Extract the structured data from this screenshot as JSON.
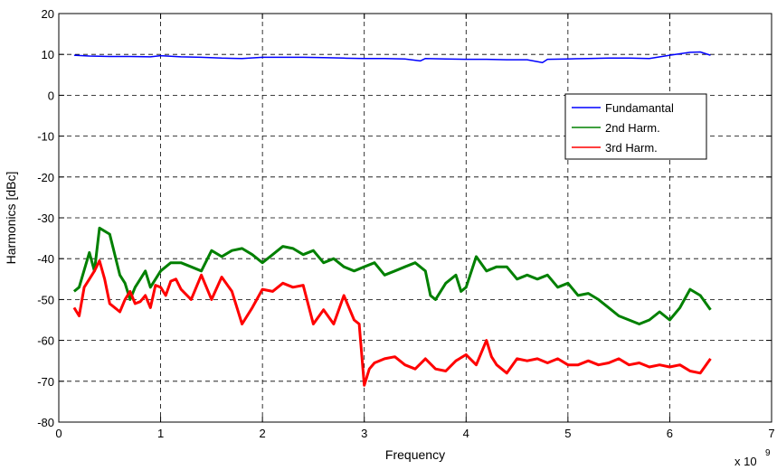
{
  "chart_data": {
    "type": "line",
    "xlabel": "Frequency",
    "ylabel": "Harmonics [dBc]",
    "x_scale_label": "x 10",
    "x_scale_exponent": "9",
    "xlim": [
      0,
      7
    ],
    "ylim": [
      -80,
      20
    ],
    "x_ticks": [
      "0",
      "1",
      "2",
      "3",
      "4",
      "5",
      "6",
      "7"
    ],
    "y_ticks": [
      "-80",
      "-70",
      "-60",
      "-50",
      "-40",
      "-30",
      "-20",
      "-10",
      "0",
      "10",
      "20"
    ],
    "grid": true,
    "legend_position": "right",
    "series": [
      {
        "name": "Fundamantal",
        "color": "#0000ff",
        "x": [
          0.15,
          0.3,
          0.5,
          0.7,
          0.9,
          1.0,
          1.2,
          1.4,
          1.6,
          1.8,
          2.0,
          2.2,
          2.4,
          2.6,
          2.8,
          3.0,
          3.2,
          3.4,
          3.55,
          3.6,
          3.8,
          4.0,
          4.2,
          4.4,
          4.6,
          4.75,
          4.8,
          5.0,
          5.2,
          5.4,
          5.6,
          5.8,
          6.0,
          6.2,
          6.3,
          6.4
        ],
        "y": [
          9.8,
          9.6,
          9.5,
          9.5,
          9.4,
          9.7,
          9.4,
          9.3,
          9.1,
          9.0,
          9.3,
          9.3,
          9.3,
          9.2,
          9.1,
          9.0,
          9.0,
          8.9,
          8.4,
          9.0,
          8.9,
          8.8,
          8.8,
          8.7,
          8.7,
          8.0,
          8.8,
          8.9,
          9.0,
          9.1,
          9.1,
          9.0,
          9.8,
          10.5,
          10.6,
          9.8
        ]
      },
      {
        "name": "2nd Harm.",
        "color": "#008000",
        "x": [
          0.15,
          0.2,
          0.3,
          0.35,
          0.4,
          0.5,
          0.6,
          0.65,
          0.7,
          0.75,
          0.8,
          0.85,
          0.9,
          1.0,
          1.1,
          1.2,
          1.3,
          1.4,
          1.5,
          1.6,
          1.7,
          1.8,
          1.9,
          2.0,
          2.1,
          2.2,
          2.3,
          2.4,
          2.5,
          2.6,
          2.7,
          2.8,
          2.9,
          3.0,
          3.1,
          3.2,
          3.3,
          3.4,
          3.5,
          3.6,
          3.65,
          3.7,
          3.8,
          3.9,
          3.95,
          4.0,
          4.1,
          4.2,
          4.3,
          4.4,
          4.5,
          4.6,
          4.7,
          4.8,
          4.9,
          5.0,
          5.1,
          5.2,
          5.3,
          5.4,
          5.5,
          5.6,
          5.7,
          5.8,
          5.9,
          6.0,
          6.1,
          6.2,
          6.3,
          6.4
        ],
        "y": [
          -48,
          -47,
          -38.5,
          -43,
          -32.5,
          -34,
          -44,
          -46,
          -50,
          -47,
          -45,
          -43,
          -47,
          -43,
          -41,
          -41,
          -42,
          -43,
          -38,
          -39.5,
          -38,
          -37.5,
          -39,
          -41,
          -39,
          -37,
          -37.5,
          -39,
          -38,
          -41,
          -40,
          -42,
          -43,
          -42,
          -41,
          -44,
          -43,
          -42,
          -41,
          -43,
          -49,
          -50,
          -46,
          -44,
          -48,
          -47,
          -39.5,
          -43,
          -42,
          -42,
          -45,
          -44,
          -45,
          -44,
          -47,
          -46,
          -49,
          -48.5,
          -50,
          -52,
          -54,
          -55,
          -56,
          -55,
          -53,
          -55,
          -52,
          -47.5,
          -49,
          -52.5
        ]
      },
      {
        "name": "3rd Harm.",
        "color": "#ff0000",
        "x": [
          0.15,
          0.2,
          0.25,
          0.3,
          0.35,
          0.4,
          0.45,
          0.5,
          0.55,
          0.6,
          0.65,
          0.7,
          0.75,
          0.8,
          0.85,
          0.9,
          0.95,
          1.0,
          1.05,
          1.1,
          1.15,
          1.2,
          1.3,
          1.4,
          1.5,
          1.6,
          1.7,
          1.8,
          1.9,
          2.0,
          2.1,
          2.2,
          2.3,
          2.4,
          2.5,
          2.6,
          2.7,
          2.8,
          2.9,
          2.95,
          3.0,
          3.05,
          3.1,
          3.2,
          3.3,
          3.4,
          3.5,
          3.6,
          3.7,
          3.8,
          3.9,
          4.0,
          4.1,
          4.2,
          4.25,
          4.3,
          4.4,
          4.5,
          4.6,
          4.7,
          4.8,
          4.9,
          5.0,
          5.1,
          5.2,
          5.3,
          5.4,
          5.5,
          5.6,
          5.7,
          5.8,
          5.9,
          6.0,
          6.1,
          6.2,
          6.3,
          6.4
        ],
        "y": [
          -52,
          -54,
          -47,
          -45,
          -43,
          -40.5,
          -45,
          -51,
          -52,
          -53,
          -50,
          -48,
          -51,
          -50.5,
          -49,
          -52,
          -46.5,
          -47,
          -49,
          -45.5,
          -45,
          -47.5,
          -50,
          -44,
          -50,
          -44.5,
          -48,
          -56,
          -52,
          -47.5,
          -48,
          -46,
          -47,
          -46.5,
          -56,
          -52.5,
          -56,
          -49,
          -55,
          -56,
          -71,
          -67,
          -65.5,
          -64.5,
          -64,
          -66,
          -67,
          -64.5,
          -67,
          -67.5,
          -65,
          -63.5,
          -66,
          -60,
          -64,
          -66,
          -68,
          -64.5,
          -65,
          -64.5,
          -65.5,
          -64.5,
          -66,
          -66,
          -65,
          -66,
          -65.5,
          -64.5,
          -66,
          -65.5,
          -66.5,
          -66,
          -66.5,
          -66,
          -67.5,
          -68,
          -64.5
        ]
      }
    ]
  }
}
